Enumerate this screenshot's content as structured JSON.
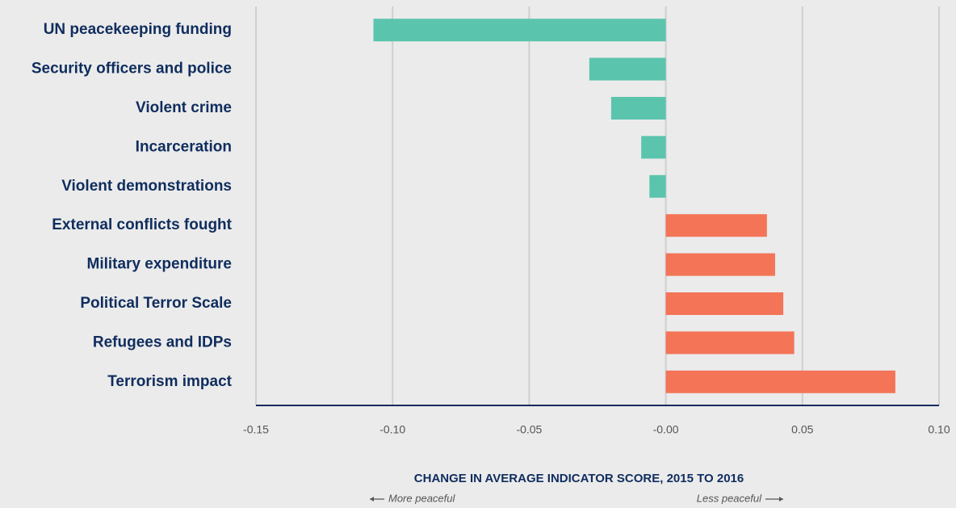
{
  "chart_data": {
    "type": "hbar",
    "categories": [
      "UN peacekeeping funding",
      "Security officers and police",
      "Violent crime",
      "Incarceration",
      "Violent demonstrations",
      "External conflicts fought",
      "Military expenditure",
      "Political Terror Scale",
      "Refugees and IDPs",
      "Terrorism impact"
    ],
    "values": [
      -0.107,
      -0.028,
      -0.02,
      -0.009,
      -0.006,
      0.037,
      0.04,
      0.043,
      0.047,
      0.084
    ],
    "colors": [
      "#5bc4ad",
      "#5bc4ad",
      "#5bc4ad",
      "#5bc4ad",
      "#5bc4ad",
      "#f47458",
      "#f47458",
      "#f47458",
      "#f47458",
      "#f47458"
    ],
    "xlim": [
      -0.15,
      0.1
    ],
    "xticks": [
      {
        "value": -0.15,
        "label": "-0.15"
      },
      {
        "value": -0.1,
        "label": "-0.10"
      },
      {
        "value": -0.05,
        "label": "-0.05"
      },
      {
        "value": 0,
        "label": "-0.00"
      },
      0.05,
      {
        "value": 0.1,
        "label": "0.10"
      }
    ],
    "grid": true,
    "xlabel": "CHANGE IN AVERAGE INDICATOR SCORE, 2015 TO 2016",
    "annotations": [
      "More peaceful",
      "Less peaceful"
    ]
  }
}
